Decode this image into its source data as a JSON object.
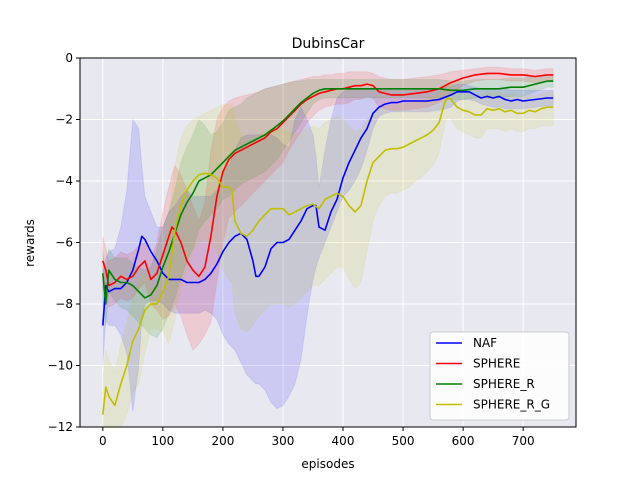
{
  "chart_data": {
    "type": "line",
    "title": "DubinsCar",
    "xlabel": "episodes",
    "ylabel": "rewards",
    "xlim": [
      -38,
      788
    ],
    "ylim": [
      -12,
      0
    ],
    "xticks": [
      0,
      100,
      200,
      300,
      400,
      500,
      600,
      700
    ],
    "yticks": [
      -12,
      -10,
      -8,
      -6,
      -4,
      -2,
      0
    ],
    "xtick_labels": [
      "0",
      "100",
      "200",
      "300",
      "400",
      "500",
      "600",
      "700"
    ],
    "ytick_labels": [
      "−12",
      "−10",
      "−8",
      "−6",
      "−4",
      "−2",
      "0"
    ],
    "grid": true,
    "legend_position": "lower-right",
    "background": "#e8e8f1",
    "series": [
      {
        "name": "NAF",
        "color": "#0000ff",
        "x": [
          0,
          5,
          10,
          20,
          30,
          40,
          50,
          60,
          65,
          70,
          80,
          90,
          100,
          110,
          120,
          130,
          140,
          150,
          160,
          170,
          180,
          190,
          200,
          210,
          220,
          230,
          240,
          250,
          255,
          260,
          270,
          280,
          290,
          300,
          310,
          320,
          330,
          340,
          350,
          355,
          360,
          370,
          380,
          390,
          400,
          410,
          420,
          430,
          440,
          450,
          460,
          470,
          480,
          490,
          500,
          520,
          540,
          560,
          580,
          590,
          600,
          610,
          620,
          630,
          640,
          650,
          660,
          670,
          680,
          690,
          700,
          720,
          740,
          750
        ],
        "values": [
          -8.7,
          -7.4,
          -7.6,
          -7.5,
          -7.5,
          -7.3,
          -6.9,
          -6.2,
          -5.8,
          -5.9,
          -6.3,
          -6.6,
          -7.0,
          -7.2,
          -7.2,
          -7.2,
          -7.3,
          -7.3,
          -7.3,
          -7.2,
          -7.0,
          -6.7,
          -6.3,
          -6.0,
          -5.8,
          -5.7,
          -5.9,
          -6.6,
          -7.1,
          -7.1,
          -6.8,
          -6.2,
          -6.0,
          -6.0,
          -5.9,
          -5.6,
          -5.3,
          -4.9,
          -4.8,
          -4.8,
          -5.5,
          -5.6,
          -5.0,
          -4.6,
          -3.9,
          -3.4,
          -3.0,
          -2.6,
          -2.3,
          -1.8,
          -1.6,
          -1.5,
          -1.45,
          -1.45,
          -1.4,
          -1.4,
          -1.4,
          -1.35,
          -1.2,
          -1.1,
          -1.1,
          -1.1,
          -1.2,
          -1.3,
          -1.25,
          -1.3,
          -1.25,
          -1.35,
          -1.4,
          -1.35,
          -1.4,
          -1.35,
          -1.3,
          -1.3
        ],
        "upper": [
          -7.0,
          -6.5,
          -6.3,
          -6.2,
          -5.5,
          -4.3,
          -2.0,
          -2.3,
          -3.5,
          -4.5,
          -5.0,
          -5.5,
          -5.5,
          -5.0,
          -4.8,
          -4.5,
          -4.3,
          -4.5,
          -4.5,
          -4.5,
          -4.5,
          -4.3,
          -3.7,
          -3.5,
          -3.0,
          -2.6,
          -2.5,
          -2.5,
          -2.5,
          -2.5,
          -2.5,
          -2.5,
          -2.6,
          -2.8,
          -2.9,
          -2.0,
          -1.6,
          -2.0,
          -2.5,
          -3.2,
          -4.2,
          -3.0,
          -2.0,
          -1.3,
          -1.1,
          -1.0,
          -1.0,
          -1.0,
          -1.0,
          -1.0,
          -1.0,
          -1.0,
          -1.0,
          -1.0,
          -1.0,
          -1.0,
          -1.0,
          -1.0,
          -0.9,
          -0.85,
          -0.85,
          -0.9,
          -0.95,
          -1.0,
          -1.0,
          -1.0,
          -1.0,
          -1.0,
          -1.05,
          -1.05,
          -1.05,
          -1.05,
          -1.05,
          -1.05
        ],
        "lower": [
          -10.0,
          -8.5,
          -8.7,
          -8.7,
          -9.0,
          -9.6,
          -11.5,
          -10.0,
          -8.5,
          -8.0,
          -7.9,
          -7.9,
          -8.0,
          -8.2,
          -8.3,
          -8.3,
          -8.3,
          -8.3,
          -8.3,
          -8.2,
          -8.3,
          -8.5,
          -9.0,
          -9.3,
          -9.5,
          -9.9,
          -10.3,
          -10.5,
          -10.6,
          -10.6,
          -10.8,
          -11.2,
          -11.4,
          -11.3,
          -11.0,
          -10.6,
          -9.8,
          -8.4,
          -7.2,
          -6.8,
          -6.5,
          -6.0,
          -5.5,
          -5.0,
          -4.5,
          -4.3,
          -4.0,
          -3.6,
          -3.0,
          -2.3,
          -1.9,
          -1.8,
          -1.75,
          -1.75,
          -1.75,
          -1.75,
          -1.75,
          -1.7,
          -1.6,
          -1.4,
          -1.35,
          -1.35,
          -1.4,
          -1.5,
          -1.55,
          -1.6,
          -1.6,
          -1.65,
          -1.65,
          -1.65,
          -1.65,
          -1.6,
          -1.55,
          -1.55
        ]
      },
      {
        "name": "SPHERE",
        "color": "#ff0000",
        "x": [
          0,
          5,
          10,
          20,
          30,
          40,
          50,
          60,
          70,
          80,
          90,
          100,
          110,
          115,
          120,
          130,
          140,
          150,
          160,
          170,
          180,
          190,
          200,
          210,
          220,
          230,
          240,
          250,
          260,
          270,
          280,
          290,
          300,
          310,
          320,
          330,
          340,
          350,
          360,
          370,
          380,
          390,
          400,
          410,
          420,
          430,
          440,
          450,
          460,
          480,
          500,
          520,
          540,
          560,
          580,
          600,
          620,
          640,
          660,
          680,
          700,
          720,
          740,
          750
        ],
        "values": [
          -6.6,
          -6.9,
          -7.4,
          -7.3,
          -7.1,
          -7.2,
          -7.1,
          -6.8,
          -6.6,
          -7.2,
          -7.0,
          -6.4,
          -5.8,
          -5.5,
          -5.6,
          -6.0,
          -6.6,
          -6.9,
          -7.1,
          -6.8,
          -5.8,
          -4.5,
          -3.7,
          -3.3,
          -3.1,
          -3.0,
          -2.9,
          -2.8,
          -2.7,
          -2.6,
          -2.4,
          -2.3,
          -2.1,
          -1.9,
          -1.7,
          -1.5,
          -1.35,
          -1.25,
          -1.15,
          -1.1,
          -1.05,
          -1.0,
          -1.0,
          -0.95,
          -0.9,
          -0.9,
          -0.85,
          -0.9,
          -1.1,
          -1.2,
          -1.2,
          -1.15,
          -1.1,
          -1.0,
          -0.8,
          -0.65,
          -0.55,
          -0.5,
          -0.5,
          -0.55,
          -0.55,
          -0.6,
          -0.55,
          -0.55
        ],
        "upper": [
          -5.8,
          -6.2,
          -6.6,
          -6.5,
          -6.3,
          -6.4,
          -6.3,
          -6.1,
          -6.0,
          -6.5,
          -6.0,
          -5.0,
          -4.2,
          -3.8,
          -3.5,
          -3.8,
          -4.3,
          -4.8,
          -5.3,
          -4.7,
          -3.0,
          -2.0,
          -1.6,
          -1.4,
          -1.3,
          -1.25,
          -1.2,
          -1.15,
          -1.1,
          -1.0,
          -0.95,
          -0.9,
          -0.85,
          -0.8,
          -0.75,
          -0.7,
          -0.65,
          -0.6,
          -0.6,
          -0.55,
          -0.55,
          -0.5,
          -0.5,
          -0.45,
          -0.45,
          -0.45,
          -0.45,
          -0.5,
          -0.6,
          -0.7,
          -0.7,
          -0.65,
          -0.6,
          -0.55,
          -0.45,
          -0.4,
          -0.35,
          -0.3,
          -0.3,
          -0.35,
          -0.35,
          -0.4,
          -0.35,
          -0.35
        ],
        "lower": [
          -7.5,
          -7.7,
          -8.1,
          -8.0,
          -7.8,
          -7.9,
          -7.8,
          -7.5,
          -7.3,
          -8.0,
          -8.2,
          -8.5,
          -8.4,
          -8.2,
          -8.0,
          -8.4,
          -9.0,
          -9.5,
          -9.3,
          -9.0,
          -8.6,
          -7.3,
          -6.0,
          -5.2,
          -5.0,
          -4.8,
          -4.6,
          -4.4,
          -4.2,
          -4.0,
          -3.8,
          -3.6,
          -3.4,
          -3.0,
          -2.7,
          -2.4,
          -2.1,
          -1.9,
          -1.7,
          -1.6,
          -1.55,
          -1.5,
          -1.5,
          -1.45,
          -1.35,
          -1.35,
          -1.25,
          -1.3,
          -1.6,
          -1.7,
          -1.7,
          -1.65,
          -1.6,
          -1.45,
          -1.15,
          -0.9,
          -0.75,
          -0.7,
          -0.7,
          -0.75,
          -0.75,
          -0.8,
          -0.75,
          -0.75
        ]
      },
      {
        "name": "SPHERE_R",
        "color": "#008000",
        "x": [
          0,
          5,
          10,
          20,
          30,
          40,
          50,
          60,
          70,
          80,
          90,
          100,
          110,
          120,
          130,
          140,
          150,
          160,
          170,
          180,
          190,
          200,
          210,
          220,
          230,
          240,
          250,
          260,
          270,
          280,
          290,
          300,
          310,
          320,
          330,
          340,
          350,
          360,
          370,
          380,
          390,
          400,
          420,
          440,
          460,
          480,
          500,
          520,
          540,
          560,
          580,
          600,
          620,
          640,
          660,
          680,
          700,
          720,
          740,
          750
        ],
        "values": [
          -7.0,
          -8.0,
          -6.9,
          -7.2,
          -7.3,
          -7.3,
          -7.4,
          -7.6,
          -7.8,
          -7.7,
          -7.4,
          -6.8,
          -6.3,
          -5.7,
          -5.1,
          -4.7,
          -4.4,
          -4.0,
          -3.9,
          -3.8,
          -3.6,
          -3.4,
          -3.2,
          -3.0,
          -2.9,
          -2.8,
          -2.7,
          -2.6,
          -2.5,
          -2.35,
          -2.2,
          -2.05,
          -1.85,
          -1.65,
          -1.45,
          -1.3,
          -1.15,
          -1.05,
          -1.0,
          -1.0,
          -1.0,
          -1.0,
          -1.0,
          -1.0,
          -1.0,
          -1.0,
          -1.0,
          -1.0,
          -1.0,
          -1.0,
          -1.05,
          -1.05,
          -1.0,
          -1.0,
          -1.0,
          -0.95,
          -0.95,
          -0.85,
          -0.75,
          -0.75
        ],
        "upper": [
          -6.3,
          -7.0,
          -6.2,
          -6.5,
          -6.5,
          -6.5,
          -6.7,
          -6.8,
          -6.9,
          -6.8,
          -6.2,
          -5.5,
          -5.0,
          -4.3,
          -3.4,
          -2.9,
          -2.5,
          -2.0,
          -2.2,
          -2.5,
          -2.4,
          -2.1,
          -1.7,
          -1.6,
          -1.5,
          -1.3,
          -1.2,
          -1.1,
          -1.0,
          -0.95,
          -0.9,
          -0.85,
          -0.8,
          -0.75,
          -0.75,
          -0.7,
          -0.7,
          -0.7,
          -0.7,
          -0.7,
          -0.7,
          -0.7,
          -0.7,
          -0.7,
          -0.7,
          -0.7,
          -0.7,
          -0.7,
          -0.7,
          -0.7,
          -0.75,
          -0.75,
          -0.7,
          -0.7,
          -0.7,
          -0.65,
          -0.65,
          -0.6,
          -0.55,
          -0.55
        ],
        "lower": [
          -7.8,
          -8.7,
          -7.6,
          -7.9,
          -8.1,
          -8.2,
          -8.4,
          -8.6,
          -8.8,
          -9.0,
          -9.1,
          -8.8,
          -8.3,
          -7.8,
          -7.2,
          -6.6,
          -6.2,
          -5.6,
          -5.3,
          -5.1,
          -4.9,
          -4.6,
          -4.5,
          -4.3,
          -4.1,
          -4.0,
          -3.9,
          -3.8,
          -3.7,
          -3.5,
          -3.3,
          -3.0,
          -2.7,
          -2.4,
          -2.1,
          -1.8,
          -1.5,
          -1.35,
          -1.3,
          -1.3,
          -1.3,
          -1.3,
          -1.3,
          -1.3,
          -1.3,
          -1.3,
          -1.3,
          -1.3,
          -1.3,
          -1.3,
          -1.35,
          -1.35,
          -1.3,
          -1.3,
          -1.3,
          -1.25,
          -1.25,
          -1.1,
          -0.95,
          -0.95
        ]
      },
      {
        "name": "SPHERE_R_G",
        "color": "#bfbf00",
        "x": [
          0,
          5,
          10,
          20,
          30,
          40,
          50,
          60,
          70,
          80,
          90,
          100,
          110,
          120,
          130,
          140,
          150,
          160,
          170,
          180,
          190,
          200,
          210,
          215,
          220,
          230,
          240,
          250,
          260,
          270,
          280,
          290,
          300,
          310,
          320,
          330,
          340,
          350,
          360,
          370,
          380,
          390,
          400,
          410,
          420,
          430,
          440,
          450,
          460,
          470,
          480,
          490,
          500,
          510,
          520,
          530,
          540,
          550,
          560,
          570,
          575,
          580,
          590,
          600,
          610,
          620,
          630,
          640,
          650,
          660,
          670,
          680,
          690,
          700,
          710,
          720,
          730,
          740,
          750
        ],
        "values": [
          -11.6,
          -10.7,
          -11.0,
          -11.3,
          -10.6,
          -10.0,
          -9.2,
          -8.8,
          -8.2,
          -8.0,
          -8.0,
          -7.6,
          -7.1,
          -5.6,
          -4.8,
          -4.3,
          -4.0,
          -3.8,
          -3.75,
          -3.8,
          -3.9,
          -4.2,
          -4.2,
          -4.3,
          -5.3,
          -5.7,
          -5.8,
          -5.6,
          -5.3,
          -5.1,
          -4.9,
          -4.9,
          -4.9,
          -5.1,
          -5.0,
          -4.9,
          -4.8,
          -4.75,
          -4.9,
          -4.6,
          -4.5,
          -4.4,
          -4.5,
          -4.8,
          -5.0,
          -4.8,
          -4.0,
          -3.4,
          -3.2,
          -3.0,
          -2.95,
          -2.95,
          -2.9,
          -2.8,
          -2.7,
          -2.6,
          -2.5,
          -2.35,
          -2.1,
          -1.4,
          -1.3,
          -1.35,
          -1.6,
          -1.7,
          -1.75,
          -1.85,
          -1.85,
          -1.65,
          -1.7,
          -1.65,
          -1.75,
          -1.7,
          -1.8,
          -1.8,
          -1.7,
          -1.75,
          -1.65,
          -1.6,
          -1.6
        ],
        "upper": [
          -10.5,
          -9.5,
          -9.8,
          -10.2,
          -9.3,
          -8.6,
          -7.8,
          -7.3,
          -7.0,
          -7.5,
          -7.4,
          -6.5,
          -5.2,
          -3.5,
          -2.6,
          -2.2,
          -2.0,
          -1.9,
          -1.8,
          -1.7,
          -1.6,
          -1.5,
          -1.5,
          -1.5,
          -2.0,
          -2.5,
          -2.6,
          -2.6,
          -2.5,
          -2.4,
          -2.3,
          -2.3,
          -2.3,
          -2.4,
          -2.5,
          -2.4,
          -2.3,
          -2.2,
          -2.3,
          -2.1,
          -2.0,
          -1.9,
          -2.0,
          -2.2,
          -2.4,
          -2.3,
          -2.0,
          -1.8,
          -1.7,
          -1.6,
          -1.55,
          -1.55,
          -1.5,
          -1.45,
          -1.4,
          -1.35,
          -1.3,
          -1.25,
          -1.15,
          -0.9,
          -0.8,
          -0.85,
          -1.0,
          -1.1,
          -1.1,
          -1.2,
          -1.2,
          -1.1,
          -1.15,
          -1.1,
          -1.2,
          -1.15,
          -1.25,
          -1.25,
          -1.2,
          -1.25,
          -1.15,
          -1.1,
          -1.1
        ],
        "lower": [
          -12.5,
          -12.0,
          -12.3,
          -12.5,
          -12.0,
          -11.6,
          -10.9,
          -10.6,
          -9.6,
          -8.8,
          -8.8,
          -8.9,
          -9.3,
          -8.5,
          -7.5,
          -6.8,
          -6.3,
          -6.0,
          -5.9,
          -6.0,
          -6.3,
          -6.9,
          -7.2,
          -7.3,
          -8.3,
          -8.8,
          -8.9,
          -8.7,
          -8.4,
          -8.2,
          -8.0,
          -8.0,
          -8.0,
          -8.1,
          -8.0,
          -7.8,
          -7.6,
          -7.4,
          -7.4,
          -7.2,
          -7.0,
          -6.8,
          -6.8,
          -7.2,
          -7.5,
          -7.3,
          -6.3,
          -5.3,
          -4.8,
          -4.5,
          -4.4,
          -4.4,
          -4.3,
          -4.2,
          -4.0,
          -3.9,
          -3.7,
          -3.5,
          -3.1,
          -2.1,
          -1.9,
          -2.0,
          -2.3,
          -2.4,
          -2.5,
          -2.6,
          -2.6,
          -2.3,
          -2.3,
          -2.3,
          -2.4,
          -2.3,
          -2.4,
          -2.4,
          -2.3,
          -2.3,
          -2.2,
          -2.2,
          -2.2
        ]
      }
    ]
  }
}
